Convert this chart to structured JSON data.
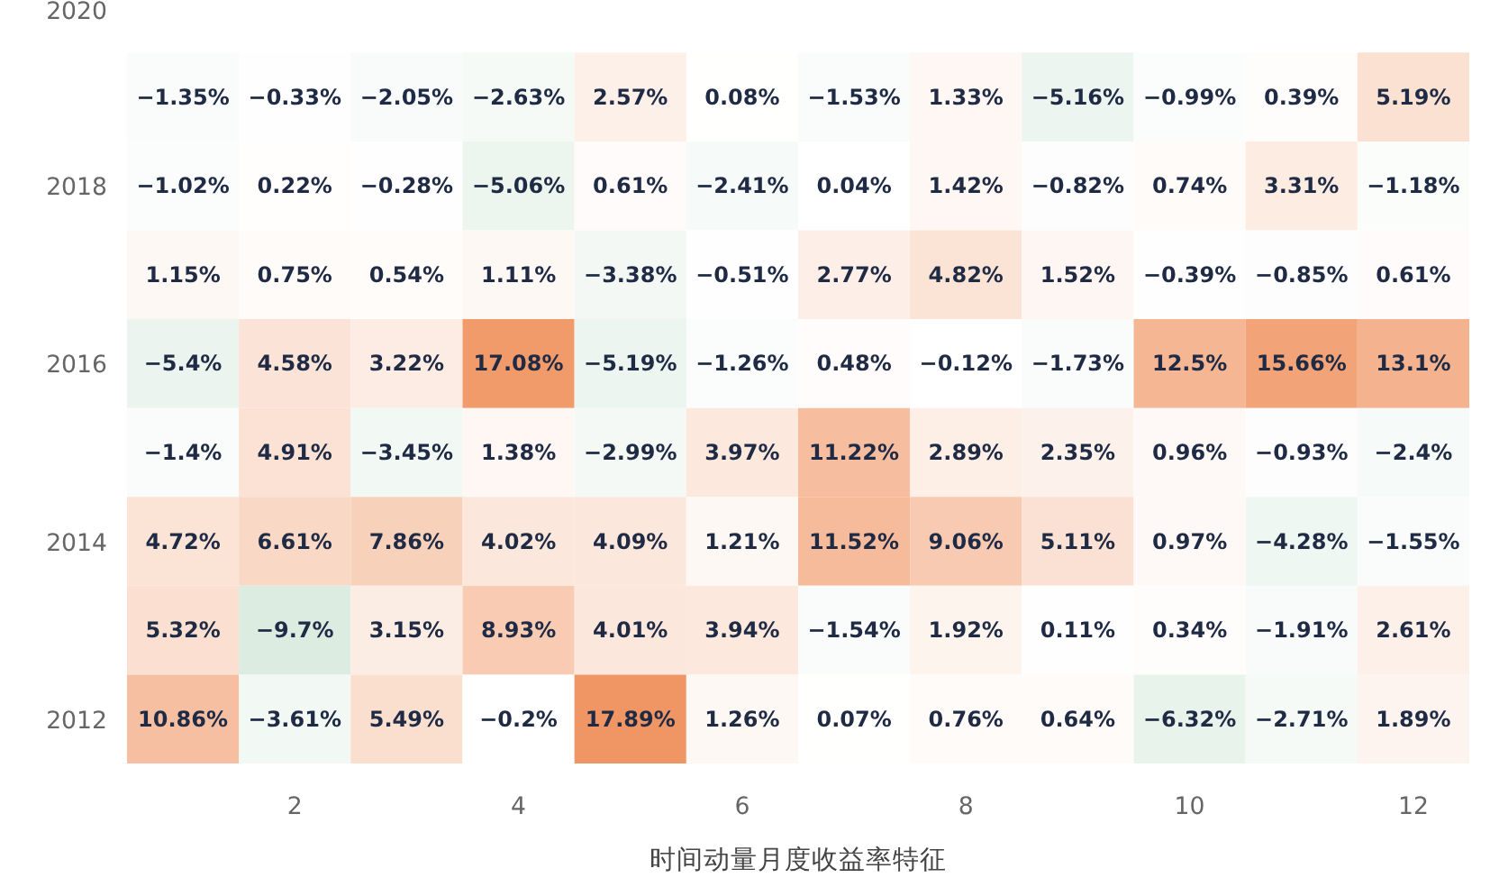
{
  "chart_data": {
    "type": "heatmap",
    "title": "时间动量月度收益率特征",
    "categories": [
      null,
      "2",
      null,
      "4",
      null,
      "6",
      null,
      "8",
      null,
      "10",
      null,
      "12"
    ],
    "y_categories": [
      "2020",
      null,
      "2018",
      null,
      "2016",
      null,
      "2014",
      null,
      "2012"
    ],
    "cells": [
      [
        null,
        null,
        null,
        null,
        null,
        null,
        null,
        null,
        null,
        null,
        null,
        null
      ],
      [
        -1.35,
        -0.33,
        -2.05,
        -2.63,
        2.57,
        0.08,
        -1.53,
        1.33,
        -5.16,
        -0.99,
        0.39,
        5.19
      ],
      [
        -1.02,
        0.22,
        -0.28,
        -5.06,
        0.61,
        -2.41,
        0.04,
        1.42,
        -0.82,
        0.74,
        3.31,
        -1.18
      ],
      [
        1.15,
        0.75,
        0.54,
        1.11,
        -3.38,
        -0.51,
        2.77,
        4.82,
        1.52,
        -0.39,
        -0.85,
        0.61
      ],
      [
        -5.4,
        4.58,
        3.22,
        17.08,
        -5.19,
        -1.26,
        0.48,
        -0.12,
        -1.73,
        12.5,
        15.66,
        13.1
      ],
      [
        -1.4,
        4.91,
        -3.45,
        1.38,
        -2.99,
        3.97,
        11.22,
        2.89,
        2.35,
        0.96,
        -0.93,
        -2.4
      ],
      [
        4.72,
        6.61,
        7.86,
        4.02,
        4.09,
        1.21,
        11.52,
        9.06,
        5.11,
        0.97,
        -4.28,
        -1.55
      ],
      [
        5.32,
        -9.7,
        3.15,
        8.93,
        4.01,
        3.94,
        -1.54,
        1.92,
        0.11,
        0.34,
        -1.91,
        2.61
      ],
      [
        10.86,
        -3.61,
        5.49,
        -0.2,
        17.89,
        1.26,
        0.07,
        0.76,
        0.64,
        -6.32,
        -2.71,
        1.89
      ]
    ],
    "cell_labels": [
      [
        null,
        null,
        null,
        null,
        null,
        null,
        null,
        null,
        null,
        null,
        null,
        null
      ],
      [
        "−1.35%",
        "−0.33%",
        "−2.05%",
        "−2.63%",
        "2.57%",
        "0.08%",
        "−1.53%",
        "1.33%",
        "−5.16%",
        "−0.99%",
        "0.39%",
        "5.19%"
      ],
      [
        "−1.02%",
        "0.22%",
        "−0.28%",
        "−5.06%",
        "0.61%",
        "−2.41%",
        "0.04%",
        "1.42%",
        "−0.82%",
        "0.74%",
        "3.31%",
        "−1.18%"
      ],
      [
        "1.15%",
        "0.75%",
        "0.54%",
        "1.11%",
        "−3.38%",
        "−0.51%",
        "2.77%",
        "4.82%",
        "1.52%",
        "−0.39%",
        "−0.85%",
        "0.61%"
      ],
      [
        "−5.4%",
        "4.58%",
        "3.22%",
        "17.08%",
        "−5.19%",
        "−1.26%",
        "0.48%",
        "−0.12%",
        "−1.73%",
        "12.5%",
        "15.66%",
        "13.1%"
      ],
      [
        "−1.4%",
        "4.91%",
        "−3.45%",
        "1.38%",
        "−2.99%",
        "3.97%",
        "11.22%",
        "2.89%",
        "2.35%",
        "0.96%",
        "−0.93%",
        "−2.4%"
      ],
      [
        "4.72%",
        "6.61%",
        "7.86%",
        "4.02%",
        "4.09%",
        "1.21%",
        "11.52%",
        "9.06%",
        "5.11%",
        "0.97%",
        "−4.28%",
        "−1.55%"
      ],
      [
        "5.32%",
        "−9.7%",
        "3.15%",
        "8.93%",
        "4.01%",
        "3.94%",
        "−1.54%",
        "1.92%",
        "0.11%",
        "0.34%",
        "−1.91%",
        "2.61%"
      ],
      [
        "10.86%",
        "−3.61%",
        "5.49%",
        "−0.2%",
        "17.89%",
        "1.26%",
        "0.07%",
        "0.76%",
        "0.64%",
        "−6.32%",
        "−2.71%",
        "1.89%"
      ]
    ]
  }
}
